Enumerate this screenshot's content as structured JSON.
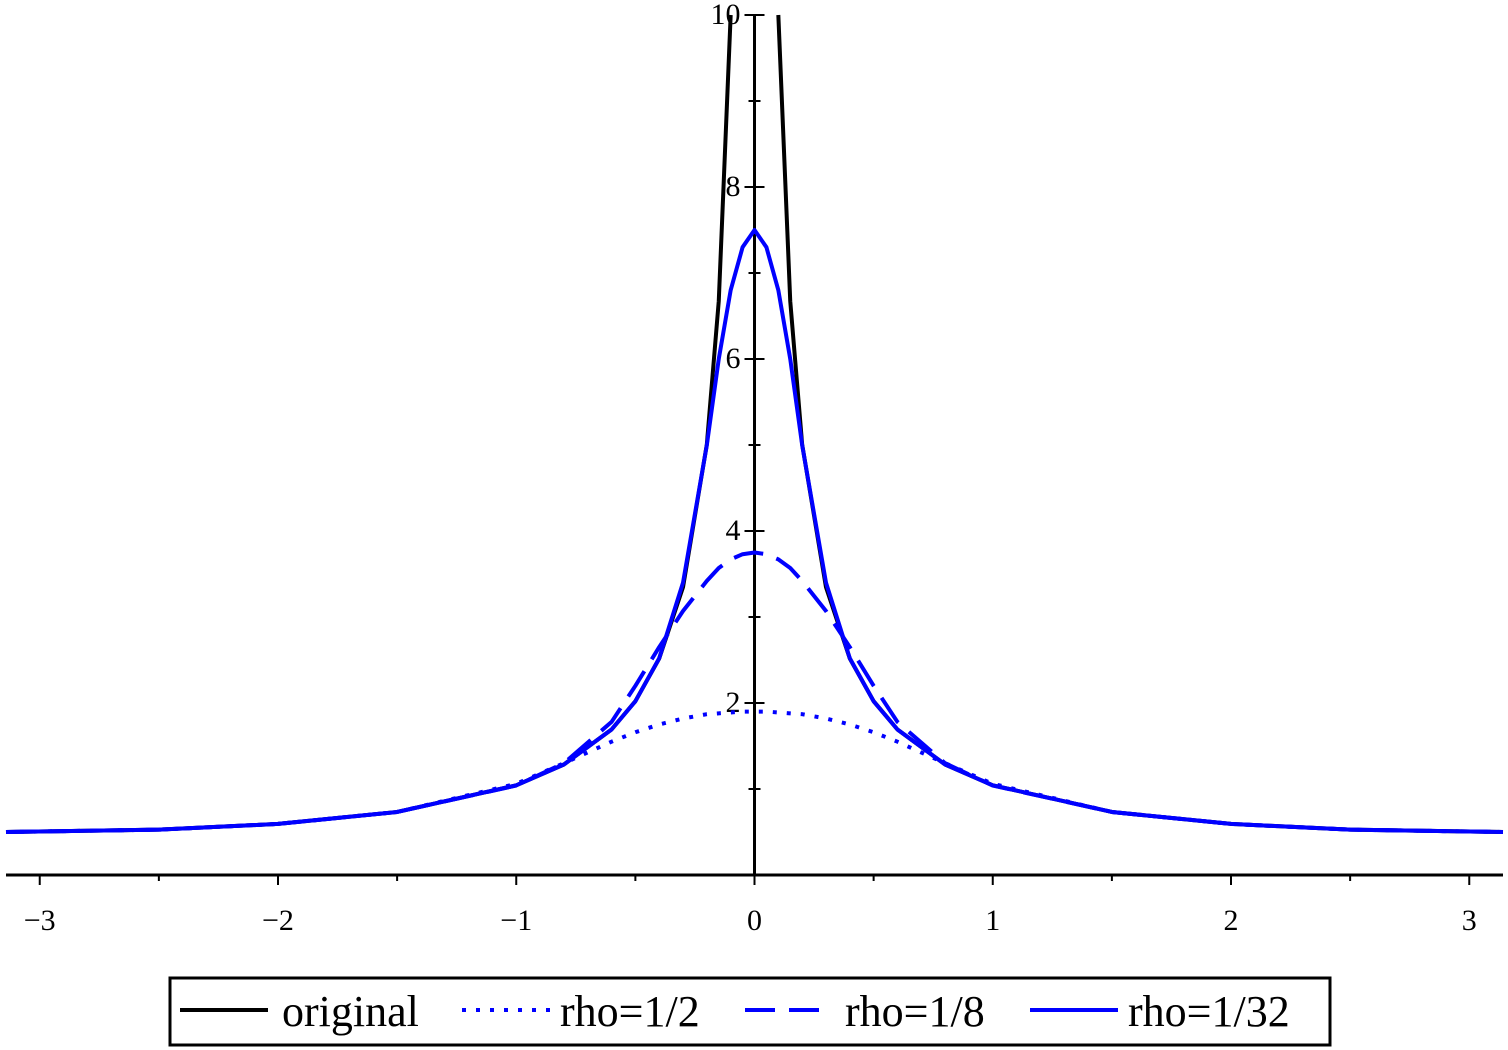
{
  "chart_data": {
    "type": "line",
    "x": [
      -3.1416,
      -2.5,
      -2,
      -1.5,
      -1,
      -0.8,
      -0.6,
      -0.5,
      -0.4,
      -0.3,
      -0.2,
      -0.15,
      -0.1,
      -0.05,
      0,
      0.05,
      0.1,
      0.15,
      0.2,
      0.3,
      0.4,
      0.5,
      0.6,
      0.8,
      1,
      1.5,
      2,
      2.5,
      3.1416
    ],
    "series": [
      {
        "name": "original",
        "color": "#000000",
        "dash": "solid",
        "values": [
          0.5,
          0.527,
          0.594,
          0.733,
          1.043,
          1.285,
          1.692,
          2.021,
          2.517,
          3.347,
          5.008,
          6.673,
          10.0,
          null,
          null,
          null,
          10.0,
          6.673,
          5.008,
          3.347,
          2.517,
          2.021,
          1.692,
          1.285,
          1.043,
          0.733,
          0.594,
          0.527,
          0.5
        ]
      },
      {
        "name": "rho=1/2",
        "color": "#0000ff",
        "dash": "dotted",
        "values": [
          0.5,
          0.527,
          0.594,
          0.733,
          1.06,
          1.3,
          1.55,
          1.66,
          1.75,
          1.82,
          1.87,
          1.88,
          1.89,
          1.9,
          1.9,
          1.9,
          1.89,
          1.88,
          1.87,
          1.82,
          1.75,
          1.66,
          1.55,
          1.3,
          1.06,
          0.733,
          0.594,
          0.527,
          0.5
        ]
      },
      {
        "name": "rho=1/8",
        "color": "#0000ff",
        "dash": "dashed",
        "values": [
          0.5,
          0.527,
          0.594,
          0.733,
          1.04,
          1.3,
          1.78,
          2.2,
          2.65,
          3.07,
          3.42,
          3.57,
          3.67,
          3.73,
          3.75,
          3.73,
          3.67,
          3.57,
          3.42,
          3.07,
          2.65,
          2.2,
          1.78,
          1.3,
          1.04,
          0.733,
          0.594,
          0.527,
          0.5
        ]
      },
      {
        "name": "rho=1/32",
        "color": "#0000ff",
        "dash": "solid",
        "values": [
          0.5,
          0.527,
          0.594,
          0.733,
          1.043,
          1.285,
          1.692,
          2.02,
          2.52,
          3.4,
          5.0,
          6.0,
          6.8,
          7.3,
          7.5,
          7.3,
          6.8,
          6.0,
          5.0,
          3.4,
          2.52,
          2.02,
          1.692,
          1.285,
          1.043,
          0.733,
          0.594,
          0.527,
          0.5
        ]
      }
    ],
    "xlim": [
      -3.1416,
      3.1416
    ],
    "ylim": [
      0,
      10
    ],
    "xticks": [
      {
        "value": -3,
        "label": "−3"
      },
      {
        "value": -2,
        "label": "−2"
      },
      {
        "value": -1,
        "label": "−1"
      },
      0,
      1,
      2,
      3
    ],
    "xminorticks": [
      -2.5,
      -1.5,
      -0.5,
      0.5,
      1.5,
      2.5
    ],
    "yticks": [
      2,
      4,
      6,
      8,
      10
    ],
    "yminorticks": [
      1,
      3,
      5,
      7,
      9
    ],
    "legend": "bottom"
  }
}
